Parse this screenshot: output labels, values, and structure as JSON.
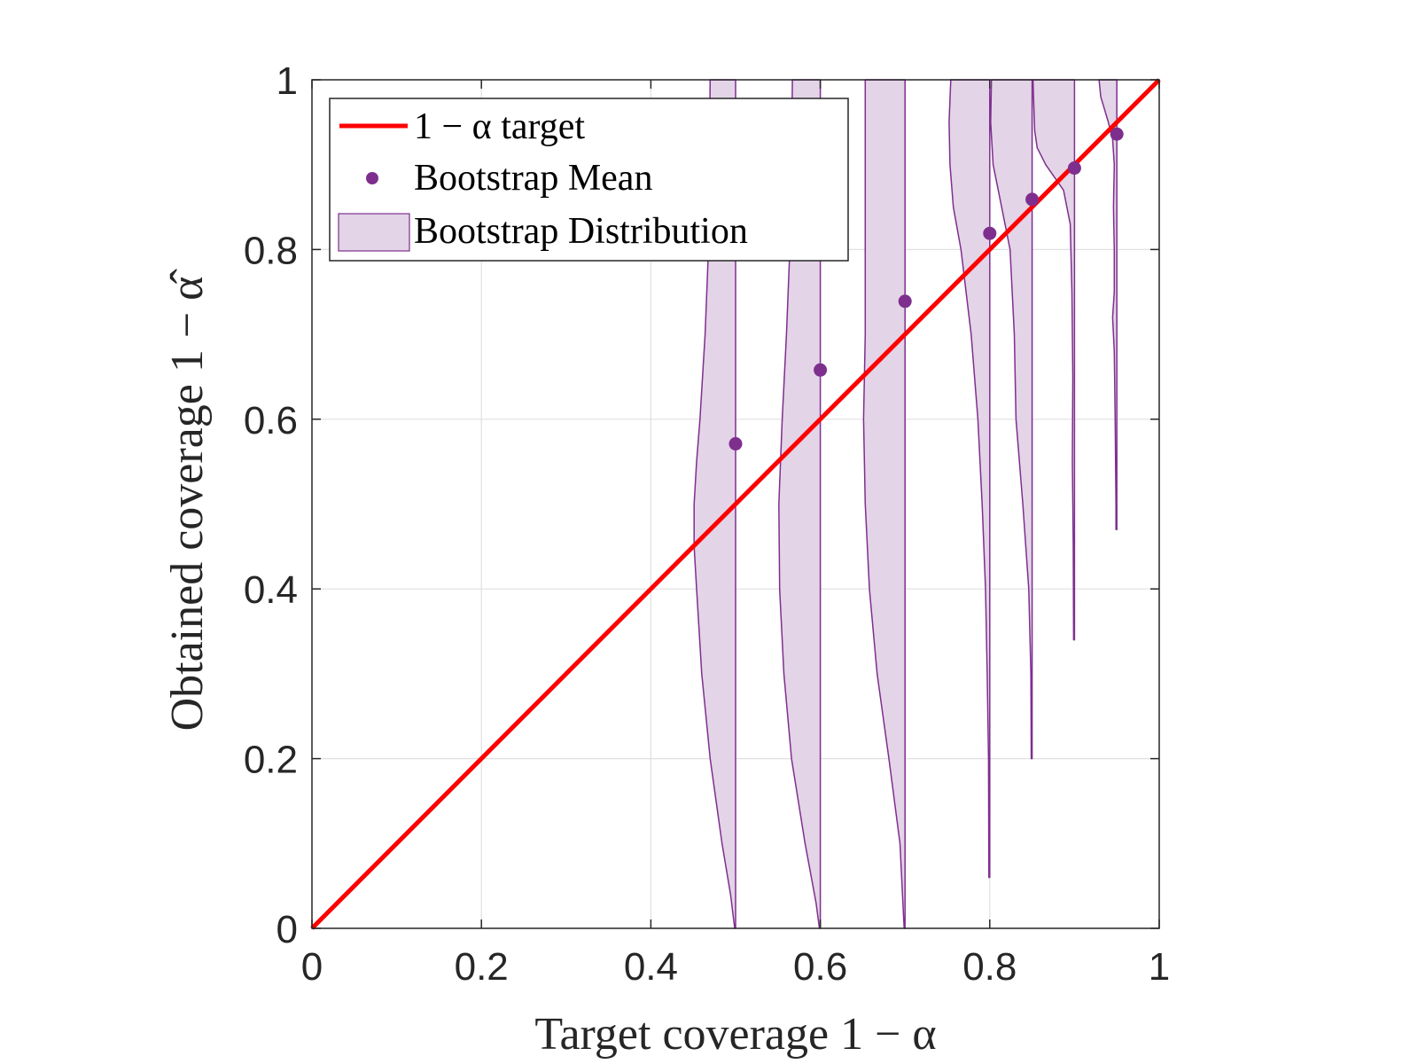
{
  "chart_data": {
    "type": "scatter",
    "xlabel": "Target coverage 1 − α",
    "ylabel": "Obtained coverage 1 − α̂",
    "xlim": [
      0,
      1
    ],
    "ylim": [
      0,
      1
    ],
    "grid": true,
    "legend_position": "top-left",
    "x_ticks": [
      "0",
      "0.2",
      "0.4",
      "0.6",
      "0.8",
      "1"
    ],
    "y_ticks": [
      "0",
      "0.2",
      "0.4",
      "0.6",
      "0.8",
      "1"
    ],
    "legend": {
      "target": "1 − α target",
      "mean": "Bootstrap Mean",
      "distribution": "Bootstrap Distribution"
    },
    "colors": {
      "target_line": "#ff0000",
      "mean_marker": "#7e2f8e",
      "distribution_fill": "#e3d4e7",
      "distribution_edge": "#7e2f8e",
      "grid": "#e0e0e0"
    },
    "target_line": {
      "x": [
        0,
        1
      ],
      "y": [
        0,
        1
      ]
    },
    "bootstrap_mean": {
      "x": [
        0.5,
        0.6,
        0.7,
        0.8,
        0.85,
        0.9,
        0.95
      ],
      "y": [
        0.571,
        0.658,
        0.739,
        0.819,
        0.859,
        0.896,
        0.936
      ]
    },
    "bootstrap_distribution": [
      {
        "x": 0.5,
        "profile": [
          [
            1.0,
            0.03
          ],
          [
            0.9,
            0.031
          ],
          [
            0.8,
            0.032
          ],
          [
            0.7,
            0.036
          ],
          [
            0.6,
            0.042
          ],
          [
            0.55,
            0.046
          ],
          [
            0.5,
            0.049
          ],
          [
            0.45,
            0.049
          ],
          [
            0.4,
            0.046
          ],
          [
            0.3,
            0.04
          ],
          [
            0.2,
            0.03
          ],
          [
            0.1,
            0.016
          ],
          [
            0.04,
            0.006
          ],
          [
            0.0,
            0.001
          ]
        ]
      },
      {
        "x": 0.6,
        "profile": [
          [
            1.0,
            0.033
          ],
          [
            0.9,
            0.034
          ],
          [
            0.8,
            0.036
          ],
          [
            0.7,
            0.04
          ],
          [
            0.6,
            0.045
          ],
          [
            0.5,
            0.049
          ],
          [
            0.4,
            0.048
          ],
          [
            0.3,
            0.043
          ],
          [
            0.2,
            0.034
          ],
          [
            0.1,
            0.018
          ],
          [
            0.03,
            0.005
          ],
          [
            0.0,
            0.001
          ]
        ]
      },
      {
        "x": 0.7,
        "profile": [
          [
            1.0,
            0.047
          ],
          [
            0.9,
            0.047
          ],
          [
            0.8,
            0.047
          ],
          [
            0.7,
            0.047
          ],
          [
            0.6,
            0.049
          ],
          [
            0.5,
            0.047
          ],
          [
            0.4,
            0.042
          ],
          [
            0.3,
            0.033
          ],
          [
            0.2,
            0.019
          ],
          [
            0.1,
            0.006
          ],
          [
            0.0,
            0.001
          ]
        ]
      },
      {
        "x": 0.8,
        "profile": [
          [
            1.0,
            0.046
          ],
          [
            0.95,
            0.048
          ],
          [
            0.9,
            0.047
          ],
          [
            0.85,
            0.043
          ],
          [
            0.8,
            0.034
          ],
          [
            0.7,
            0.022
          ],
          [
            0.6,
            0.014
          ],
          [
            0.5,
            0.009
          ],
          [
            0.4,
            0.005
          ],
          [
            0.3,
            0.003
          ],
          [
            0.2,
            0.0015
          ],
          [
            0.06,
            0.001
          ]
        ]
      },
      {
        "x": 0.85,
        "profile": [
          [
            1.0,
            0.048
          ],
          [
            0.95,
            0.049
          ],
          [
            0.9,
            0.046
          ],
          [
            0.85,
            0.036
          ],
          [
            0.8,
            0.026
          ],
          [
            0.7,
            0.021
          ],
          [
            0.6,
            0.019
          ],
          [
            0.5,
            0.011
          ],
          [
            0.4,
            0.004
          ],
          [
            0.3,
            0.0015
          ],
          [
            0.2,
            0.001
          ]
        ]
      },
      {
        "x": 0.9,
        "profile": [
          [
            1.0,
            0.049
          ],
          [
            0.97,
            0.048
          ],
          [
            0.94,
            0.047
          ],
          [
            0.92,
            0.044
          ],
          [
            0.9,
            0.034
          ],
          [
            0.87,
            0.013
          ],
          [
            0.83,
            0.005
          ],
          [
            0.75,
            0.003
          ],
          [
            0.65,
            0.002
          ],
          [
            0.55,
            0.0025
          ],
          [
            0.45,
            0.0015
          ],
          [
            0.34,
            0.001
          ]
        ]
      },
      {
        "x": 0.95,
        "profile": [
          [
            1.0,
            0.021
          ],
          [
            0.99,
            0.02
          ],
          [
            0.98,
            0.019
          ],
          [
            0.97,
            0.016
          ],
          [
            0.95,
            0.01
          ],
          [
            0.93,
            0.005
          ],
          [
            0.9,
            0.003
          ],
          [
            0.85,
            0.004
          ],
          [
            0.8,
            0.003
          ],
          [
            0.75,
            0.003
          ],
          [
            0.72,
            0.005
          ],
          [
            0.68,
            0.003
          ],
          [
            0.6,
            0.002
          ],
          [
            0.5,
            0.001
          ],
          [
            0.47,
            0.001
          ]
        ]
      }
    ]
  }
}
